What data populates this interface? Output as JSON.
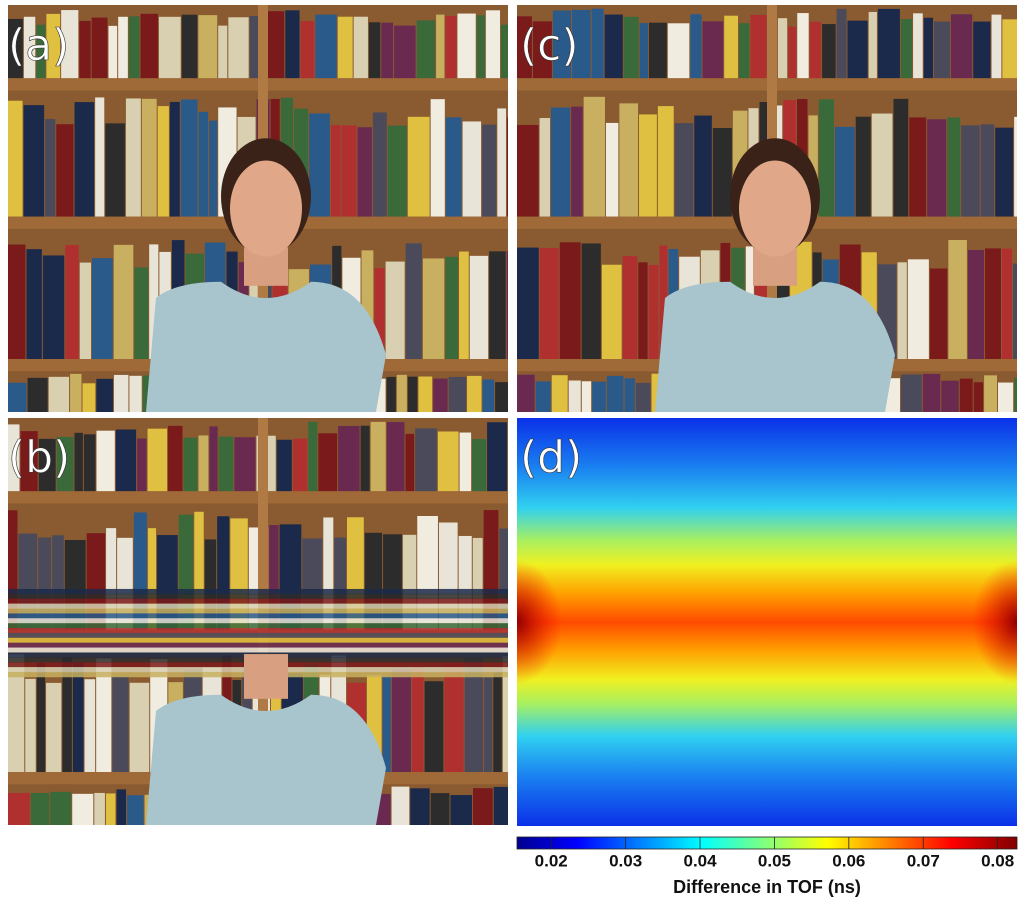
{
  "panels": [
    {
      "label": "(a)"
    },
    {
      "label": "(c)"
    },
    {
      "label": "(b)"
    },
    {
      "label": "(d)"
    }
  ],
  "colorbar": {
    "label": "Difference in TOF (ns)",
    "lim": [
      0.0154,
      0.0826
    ],
    "ticks": [
      0.02,
      0.03,
      0.04,
      0.05,
      0.06,
      0.07,
      0.08
    ]
  }
}
